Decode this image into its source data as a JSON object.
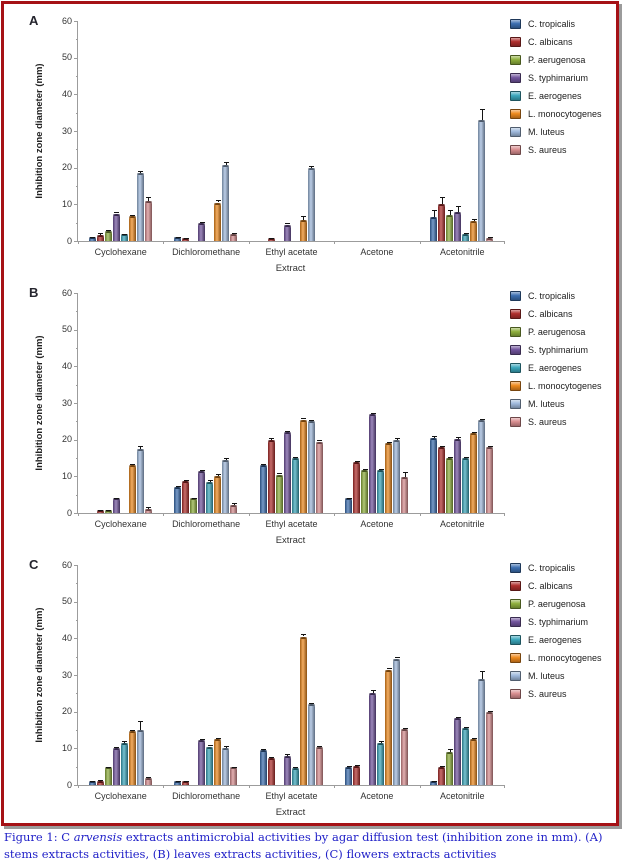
{
  "figure": {
    "border_color": "#a51116",
    "caption": {
      "prefix": "Figure 1: C ",
      "species_italic": "arvensis",
      "rest": " extracts antimicrobial activities by agar diffusion test (inhibition zone in mm). (A) stems extracts activities, (B) leaves extracts activities, (C) flowers extracts activities",
      "color": "#2121c8"
    }
  },
  "chart_data": [
    {
      "type": "bar",
      "panel_label": "A",
      "xlabel": "Extract",
      "ylabel": "Inhibition zone diameter (mm)",
      "ylim": [
        0,
        60
      ],
      "yticks": [
        0,
        10,
        20,
        30,
        40,
        50,
        60
      ],
      "grid": false,
      "legend_position": "right",
      "error_bars": true,
      "categories": [
        "Cyclohexane",
        "Dichloromethane",
        "Ethyl acetate",
        "Acetone",
        "Acetonitrile"
      ],
      "series": [
        {
          "name": "C. tropicalis",
          "color": "#3c6fb1",
          "values": [
            1.0,
            1.0,
            0,
            0,
            6.5
          ],
          "errors": [
            0.2,
            0.2,
            0,
            0,
            2.0
          ]
        },
        {
          "name": "C. albicans",
          "color": "#b02e2c",
          "values": [
            1.7,
            0.8,
            0.8,
            0,
            10.0
          ],
          "errors": [
            0.5,
            0.1,
            0.1,
            0,
            2.0
          ]
        },
        {
          "name": "P. aerugenosa",
          "color": "#8fb03d",
          "values": [
            2.8,
            0,
            0,
            0,
            7.0
          ],
          "errors": [
            0.2,
            0,
            0,
            0,
            1.5
          ]
        },
        {
          "name": "S. typhimarium",
          "color": "#72559e",
          "values": [
            7.5,
            5.0,
            4.5,
            0,
            8.0
          ],
          "errors": [
            0.4,
            0.2,
            0.5,
            0,
            1.5
          ]
        },
        {
          "name": "E. aerogenes",
          "color": "#3ba7bc",
          "values": [
            1.8,
            0,
            0,
            0,
            2.0
          ],
          "errors": [
            0.2,
            0,
            0,
            0,
            0.3
          ]
        },
        {
          "name": "L. monocytogenes",
          "color": "#ee8a1e",
          "values": [
            6.8,
            10.5,
            5.8,
            0,
            5.5
          ],
          "errors": [
            0.2,
            0.8,
            1.0,
            0,
            0.4
          ]
        },
        {
          "name": "M. luteus",
          "color": "#9fb9dc",
          "values": [
            18.5,
            20.8,
            20.0,
            0,
            33.0
          ],
          "errors": [
            0.6,
            0.8,
            0.4,
            0,
            3.0
          ]
        },
        {
          "name": "S. aureus",
          "color": "#d98e90",
          "values": [
            11.0,
            1.8,
            0,
            0,
            0.8
          ],
          "errors": [
            1.0,
            0.4,
            0,
            0,
            0.2
          ]
        }
      ]
    },
    {
      "type": "bar",
      "panel_label": "B",
      "xlabel": "Extract",
      "ylabel": "Inhibition zone diameter (mm)",
      "ylim": [
        0,
        60
      ],
      "yticks": [
        0,
        10,
        20,
        30,
        40,
        50,
        60
      ],
      "grid": false,
      "legend_position": "right",
      "error_bars": true,
      "categories": [
        "Cyclohexane",
        "Dichloromethane",
        "Ethyl acetate",
        "Acetone",
        "Acetonitrile"
      ],
      "series": [
        {
          "name": "C. tropicalis",
          "color": "#3c6fb1",
          "values": [
            0,
            7.0,
            13.0,
            4.0,
            20.5
          ],
          "errors": [
            0,
            0.3,
            0.4,
            0.2,
            0.5
          ]
        },
        {
          "name": "C. albicans",
          "color": "#b02e2c",
          "values": [
            0.8,
            8.8,
            20.0,
            13.8,
            18.0
          ],
          "errors": [
            0.1,
            0.3,
            0.5,
            0.3,
            0.3
          ]
        },
        {
          "name": "P. aerugenosa",
          "color": "#8fb03d",
          "values": [
            0.8,
            4.0,
            10.5,
            11.8,
            15.0
          ],
          "errors": [
            0.1,
            0.2,
            0.4,
            0.3,
            0.3
          ]
        },
        {
          "name": "S. typhimarium",
          "color": "#72559e",
          "values": [
            4.0,
            11.5,
            22.0,
            27.0,
            20.3
          ],
          "errors": [
            0.2,
            0.3,
            0.4,
            0.4,
            0.4
          ]
        },
        {
          "name": "E. aerogenes",
          "color": "#3ba7bc",
          "values": [
            0,
            8.5,
            15.0,
            11.8,
            15.0
          ],
          "errors": [
            0,
            0.5,
            0.4,
            0.3,
            0.4
          ]
        },
        {
          "name": "L. monocytogenes",
          "color": "#ee8a1e",
          "values": [
            13.0,
            10.2,
            25.5,
            19.0,
            21.8
          ],
          "errors": [
            0.4,
            0.4,
            0.5,
            0.4,
            0.4
          ]
        },
        {
          "name": "M. luteus",
          "color": "#9fb9dc",
          "values": [
            17.5,
            14.5,
            25.0,
            20.0,
            25.3
          ],
          "errors": [
            0.8,
            0.5,
            0.4,
            0.4,
            0.4
          ]
        },
        {
          "name": "S. aureus",
          "color": "#d98e90",
          "values": [
            1.2,
            2.3,
            19.5,
            9.7,
            18.0
          ],
          "errors": [
            0.5,
            0.3,
            0.4,
            1.5,
            0.4
          ]
        }
      ]
    },
    {
      "type": "bar",
      "panel_label": "C",
      "xlabel": "Extract",
      "ylabel": "Inhibition zone diameter (mm)",
      "ylim": [
        0,
        60
      ],
      "yticks": [
        0,
        10,
        20,
        30,
        40,
        50,
        60
      ],
      "grid": false,
      "legend_position": "right",
      "error_bars": true,
      "categories": [
        "Cyclohexane",
        "Dichloromethane",
        "Ethyl acetate",
        "Acetone",
        "Acetonitrile"
      ],
      "series": [
        {
          "name": "C. tropicalis",
          "color": "#3c6fb1",
          "values": [
            1.0,
            1.0,
            9.5,
            5.0,
            1.0
          ],
          "errors": [
            0.1,
            0.1,
            0.3,
            0.2,
            0.1
          ]
        },
        {
          "name": "C. albicans",
          "color": "#b02e2c",
          "values": [
            1.2,
            1.0,
            7.3,
            5.3,
            4.8
          ],
          "errors": [
            0.1,
            0.1,
            0.3,
            0.2,
            0.3
          ]
        },
        {
          "name": "P. aerugenosa",
          "color": "#8fb03d",
          "values": [
            4.8,
            0,
            0,
            0,
            9.0
          ],
          "errors": [
            0.2,
            0,
            0,
            0,
            0.8
          ]
        },
        {
          "name": "S. typhimarium",
          "color": "#72559e",
          "values": [
            10.2,
            12.2,
            7.8,
            25.0,
            18.2
          ],
          "errors": [
            0.3,
            0.3,
            0.6,
            1.0,
            0.4
          ]
        },
        {
          "name": "E. aerogenes",
          "color": "#3ba7bc",
          "values": [
            11.5,
            10.5,
            4.7,
            11.5,
            15.5
          ],
          "errors": [
            0.4,
            0.4,
            0.3,
            0.4,
            0.4
          ]
        },
        {
          "name": "L. monocytogenes",
          "color": "#ee8a1e",
          "values": [
            14.8,
            12.5,
            40.5,
            31.5,
            12.5
          ],
          "errors": [
            0.3,
            0.3,
            0.8,
            0.5,
            0.3
          ]
        },
        {
          "name": "M. luteus",
          "color": "#9fb9dc",
          "values": [
            15.0,
            10.2,
            22.0,
            34.5,
            29.0
          ],
          "errors": [
            2.5,
            0.4,
            0.3,
            0.5,
            2.0
          ]
        },
        {
          "name": "S. aureus",
          "color": "#d98e90",
          "values": [
            2.0,
            4.8,
            10.3,
            15.2,
            19.8
          ],
          "errors": [
            0.2,
            0.2,
            0.3,
            0.4,
            0.3
          ]
        }
      ]
    }
  ]
}
